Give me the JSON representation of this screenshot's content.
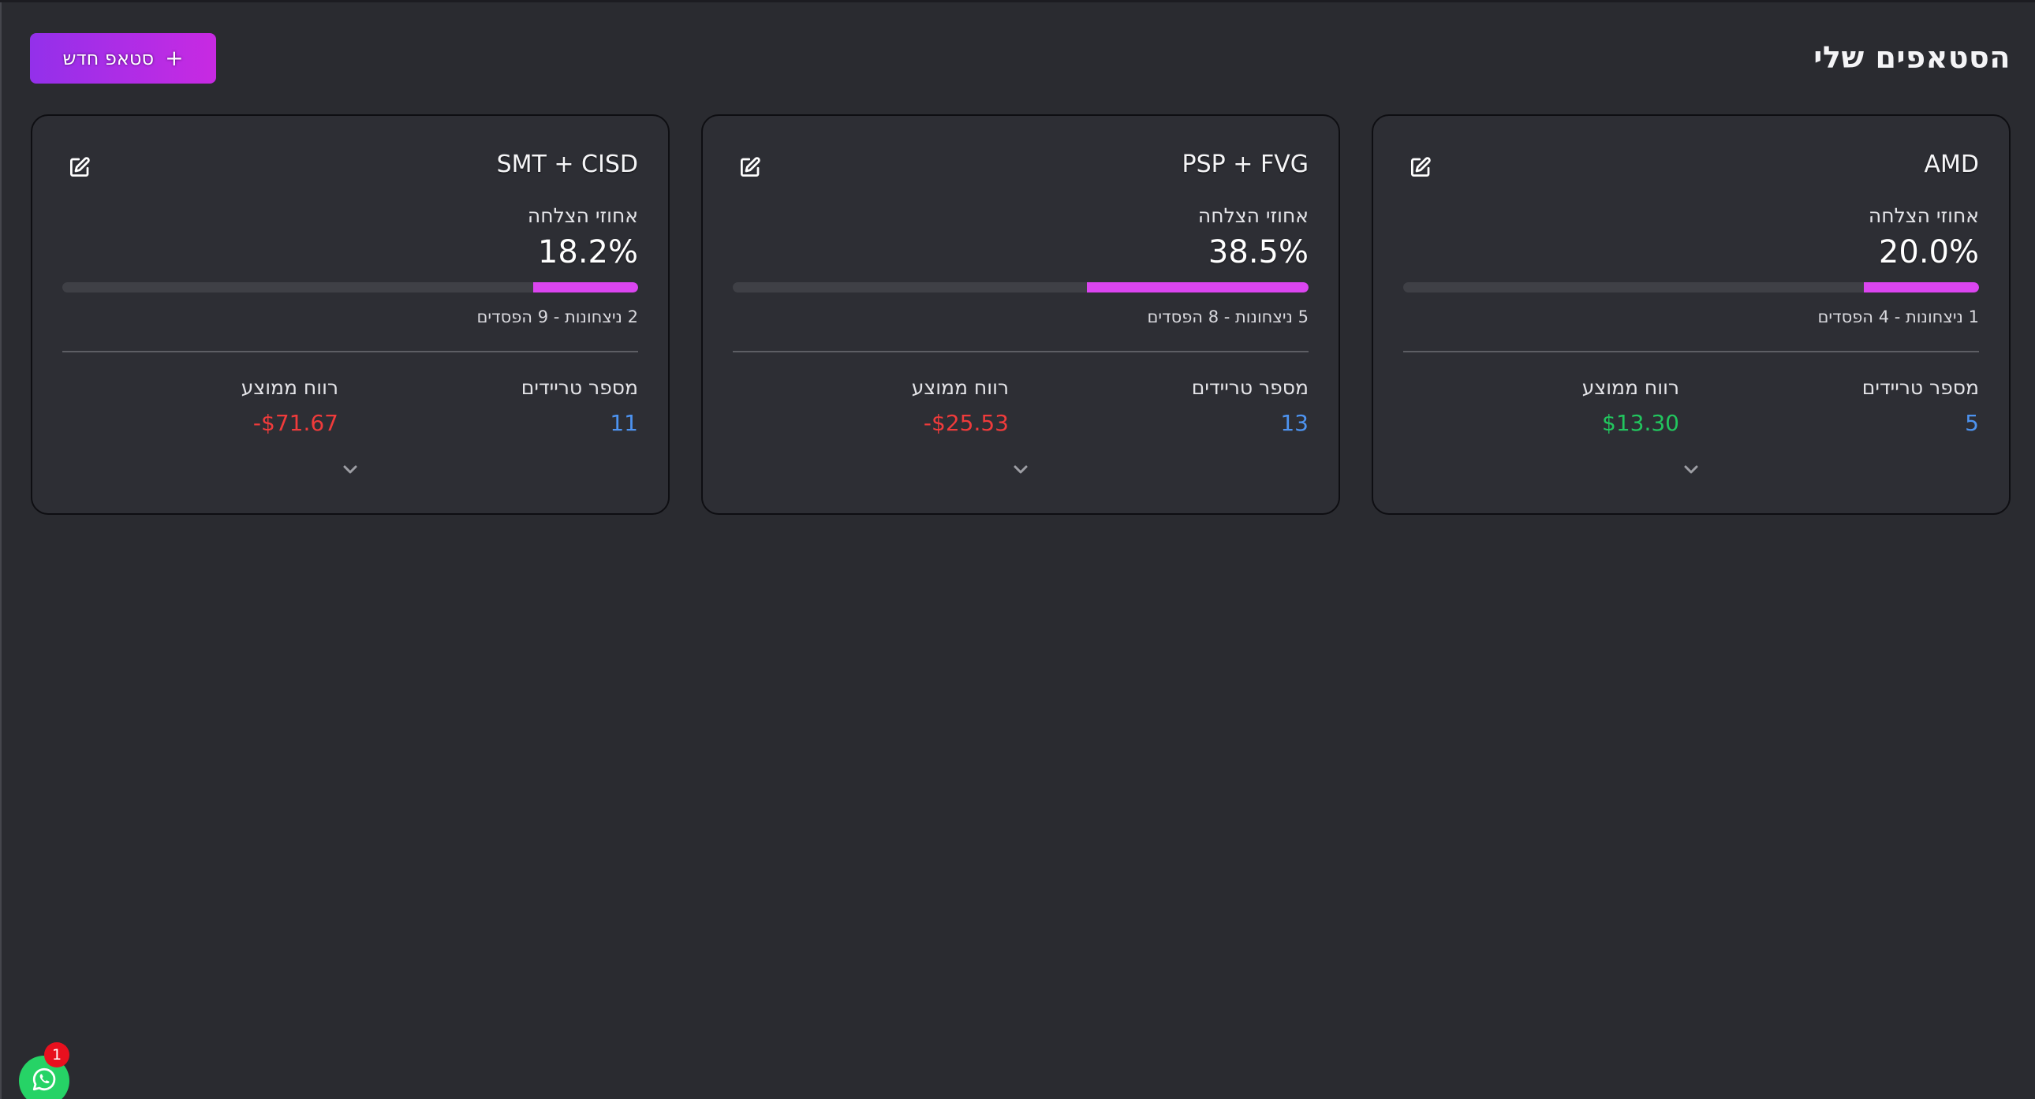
{
  "header": {
    "title": "הסטאפים שלי",
    "new_button_label": "סטאפ חדש",
    "new_button_icon": "plus-icon",
    "new_button_plus": "+"
  },
  "colors": {
    "accent_gradient_start": "#9330ea",
    "accent_gradient_end": "#c82ae2",
    "progress_fill": "#db45f0",
    "value_blue": "#4d93f0",
    "profit_positive": "#22c55e",
    "profit_negative": "#ef3b3b",
    "whatsapp_green": "#26d366",
    "badge_red": "#e8101e"
  },
  "cards": [
    {
      "name": "AMD",
      "rate_label": "אחוזי הצלחה",
      "rate_value": "20.0%",
      "rate_percent": 20.0,
      "wins_losses": "1 ניצחונות - 4 הפסדים",
      "trades_label": "מספר טריידים",
      "trades_value": "5",
      "profit_label": "רווח ממוצע",
      "profit_value": "$13.30",
      "profit_sign": "positive",
      "edit_icon": "edit-icon",
      "expand_icon": "chevron-down-icon"
    },
    {
      "name": "PSP + FVG",
      "rate_label": "אחוזי הצלחה",
      "rate_value": "38.5%",
      "rate_percent": 38.5,
      "wins_losses": "5 ניצחונות - 8 הפסדים",
      "trades_label": "מספר טריידים",
      "trades_value": "13",
      "profit_label": "רווח ממוצע",
      "profit_value": "-$25.53",
      "profit_sign": "negative",
      "edit_icon": "edit-icon",
      "expand_icon": "chevron-down-icon"
    },
    {
      "name": "SMT + CISD",
      "rate_label": "אחוזי הצלחה",
      "rate_value": "18.2%",
      "rate_percent": 18.2,
      "wins_losses": "2 ניצחונות - 9 הפסדים",
      "trades_label": "מספר טריידים",
      "trades_value": "11",
      "profit_label": "רווח ממוצע",
      "profit_value": "-$71.67",
      "profit_sign": "negative",
      "edit_icon": "edit-icon",
      "expand_icon": "chevron-down-icon"
    }
  ],
  "whatsapp": {
    "icon": "whatsapp-icon",
    "badge_count": "1"
  }
}
